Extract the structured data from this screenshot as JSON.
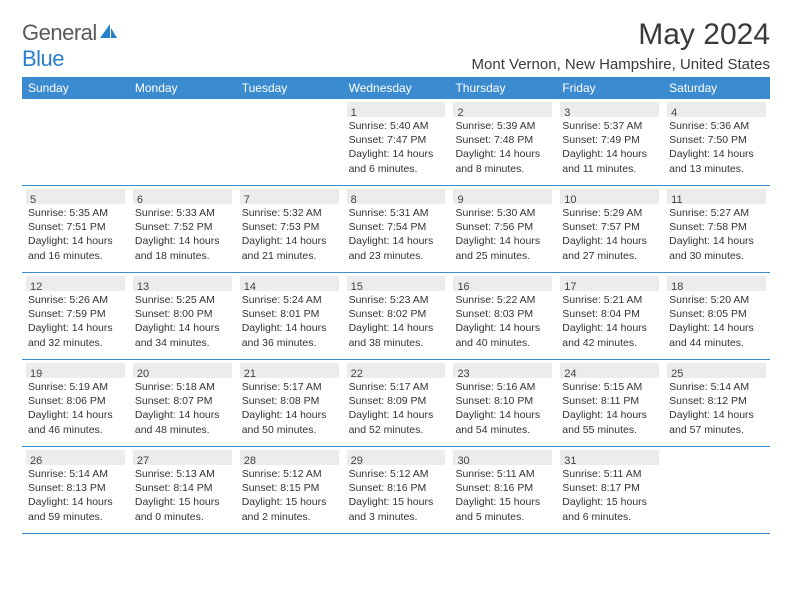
{
  "logo": {
    "text_left": "General",
    "text_right": "Blue"
  },
  "title": "May 2024",
  "location": "Mont Vernon, New Hampshire, United States",
  "colors": {
    "header_bg": "#3b8bd0",
    "header_text": "#ffffff",
    "daynum_bg": "#ececec",
    "border": "#3b8bd0"
  },
  "day_names": [
    "Sunday",
    "Monday",
    "Tuesday",
    "Wednesday",
    "Thursday",
    "Friday",
    "Saturday"
  ],
  "weeks": [
    [
      {
        "blank": true
      },
      {
        "blank": true
      },
      {
        "blank": true
      },
      {
        "n": "1",
        "sr": "5:40 AM",
        "ss": "7:47 PM",
        "dl": "14 hours and 6 minutes."
      },
      {
        "n": "2",
        "sr": "5:39 AM",
        "ss": "7:48 PM",
        "dl": "14 hours and 8 minutes."
      },
      {
        "n": "3",
        "sr": "5:37 AM",
        "ss": "7:49 PM",
        "dl": "14 hours and 11 minutes."
      },
      {
        "n": "4",
        "sr": "5:36 AM",
        "ss": "7:50 PM",
        "dl": "14 hours and 13 minutes."
      }
    ],
    [
      {
        "n": "5",
        "sr": "5:35 AM",
        "ss": "7:51 PM",
        "dl": "14 hours and 16 minutes."
      },
      {
        "n": "6",
        "sr": "5:33 AM",
        "ss": "7:52 PM",
        "dl": "14 hours and 18 minutes."
      },
      {
        "n": "7",
        "sr": "5:32 AM",
        "ss": "7:53 PM",
        "dl": "14 hours and 21 minutes."
      },
      {
        "n": "8",
        "sr": "5:31 AM",
        "ss": "7:54 PM",
        "dl": "14 hours and 23 minutes."
      },
      {
        "n": "9",
        "sr": "5:30 AM",
        "ss": "7:56 PM",
        "dl": "14 hours and 25 minutes."
      },
      {
        "n": "10",
        "sr": "5:29 AM",
        "ss": "7:57 PM",
        "dl": "14 hours and 27 minutes."
      },
      {
        "n": "11",
        "sr": "5:27 AM",
        "ss": "7:58 PM",
        "dl": "14 hours and 30 minutes."
      }
    ],
    [
      {
        "n": "12",
        "sr": "5:26 AM",
        "ss": "7:59 PM",
        "dl": "14 hours and 32 minutes."
      },
      {
        "n": "13",
        "sr": "5:25 AM",
        "ss": "8:00 PM",
        "dl": "14 hours and 34 minutes."
      },
      {
        "n": "14",
        "sr": "5:24 AM",
        "ss": "8:01 PM",
        "dl": "14 hours and 36 minutes."
      },
      {
        "n": "15",
        "sr": "5:23 AM",
        "ss": "8:02 PM",
        "dl": "14 hours and 38 minutes."
      },
      {
        "n": "16",
        "sr": "5:22 AM",
        "ss": "8:03 PM",
        "dl": "14 hours and 40 minutes."
      },
      {
        "n": "17",
        "sr": "5:21 AM",
        "ss": "8:04 PM",
        "dl": "14 hours and 42 minutes."
      },
      {
        "n": "18",
        "sr": "5:20 AM",
        "ss": "8:05 PM",
        "dl": "14 hours and 44 minutes."
      }
    ],
    [
      {
        "n": "19",
        "sr": "5:19 AM",
        "ss": "8:06 PM",
        "dl": "14 hours and 46 minutes."
      },
      {
        "n": "20",
        "sr": "5:18 AM",
        "ss": "8:07 PM",
        "dl": "14 hours and 48 minutes."
      },
      {
        "n": "21",
        "sr": "5:17 AM",
        "ss": "8:08 PM",
        "dl": "14 hours and 50 minutes."
      },
      {
        "n": "22",
        "sr": "5:17 AM",
        "ss": "8:09 PM",
        "dl": "14 hours and 52 minutes."
      },
      {
        "n": "23",
        "sr": "5:16 AM",
        "ss": "8:10 PM",
        "dl": "14 hours and 54 minutes."
      },
      {
        "n": "24",
        "sr": "5:15 AM",
        "ss": "8:11 PM",
        "dl": "14 hours and 55 minutes."
      },
      {
        "n": "25",
        "sr": "5:14 AM",
        "ss": "8:12 PM",
        "dl": "14 hours and 57 minutes."
      }
    ],
    [
      {
        "n": "26",
        "sr": "5:14 AM",
        "ss": "8:13 PM",
        "dl": "14 hours and 59 minutes."
      },
      {
        "n": "27",
        "sr": "5:13 AM",
        "ss": "8:14 PM",
        "dl": "15 hours and 0 minutes."
      },
      {
        "n": "28",
        "sr": "5:12 AM",
        "ss": "8:15 PM",
        "dl": "15 hours and 2 minutes."
      },
      {
        "n": "29",
        "sr": "5:12 AM",
        "ss": "8:16 PM",
        "dl": "15 hours and 3 minutes."
      },
      {
        "n": "30",
        "sr": "5:11 AM",
        "ss": "8:16 PM",
        "dl": "15 hours and 5 minutes."
      },
      {
        "n": "31",
        "sr": "5:11 AM",
        "ss": "8:17 PM",
        "dl": "15 hours and 6 minutes."
      },
      {
        "blank": true
      }
    ]
  ],
  "labels": {
    "sunrise": "Sunrise: ",
    "sunset": "Sunset: ",
    "daylight": "Daylight: "
  }
}
